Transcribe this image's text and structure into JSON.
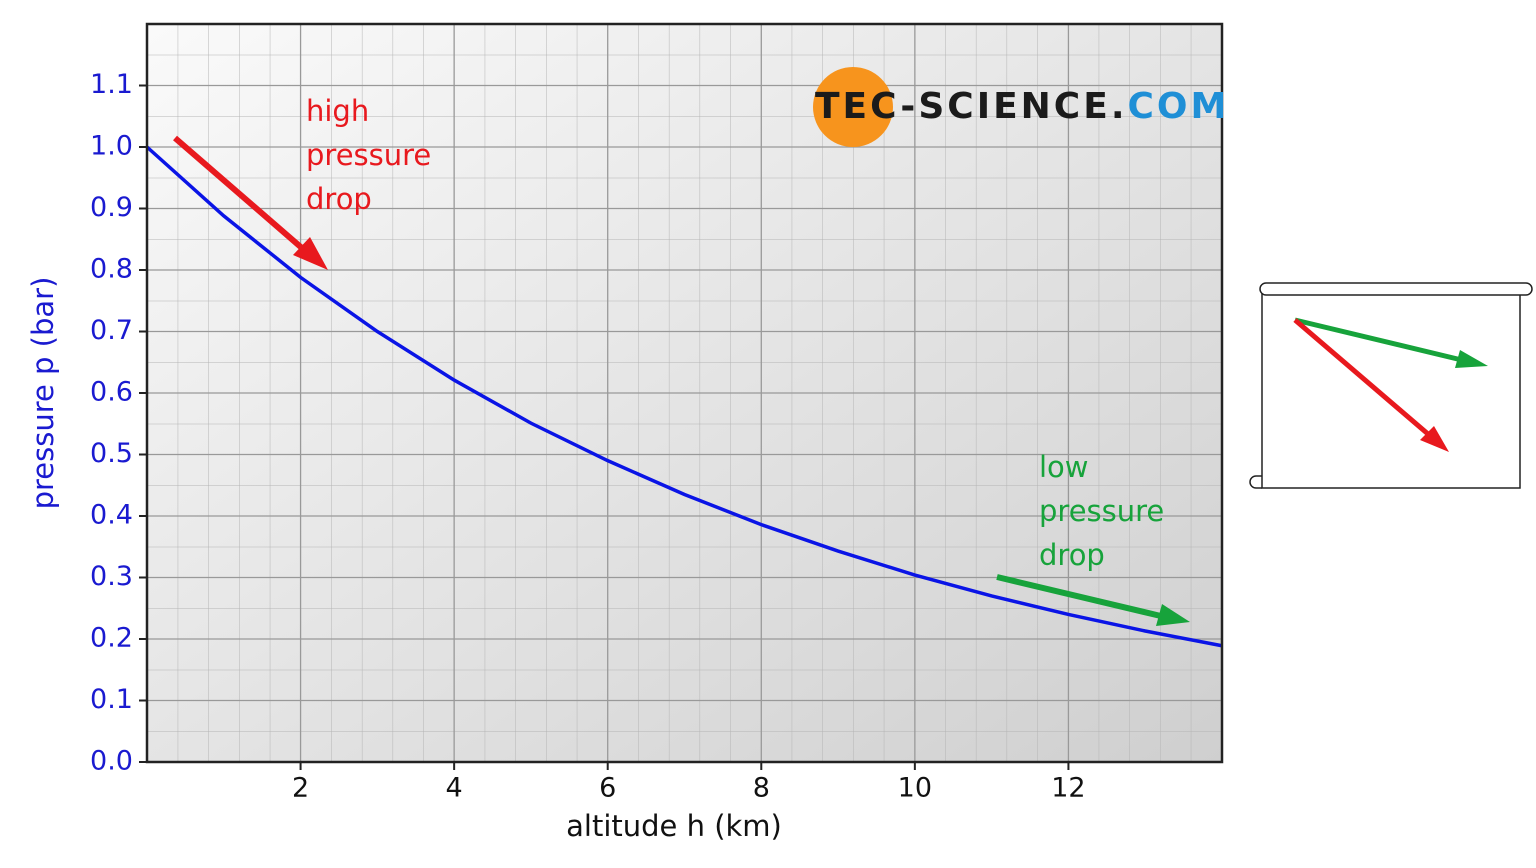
{
  "chart_data": {
    "type": "line",
    "xlabel": "altitude h (km)",
    "ylabel": "pressure p (bar)",
    "x": [
      0,
      1,
      2,
      3,
      4,
      5,
      6,
      7,
      8,
      9,
      10,
      11,
      12,
      13,
      14
    ],
    "series": [
      {
        "name": "pressure",
        "color": "#0a14e6",
        "values": [
          1.0,
          0.888,
          0.788,
          0.7,
          0.621,
          0.551,
          0.49,
          0.435,
          0.386,
          0.343,
          0.304,
          0.27,
          0.24,
          0.213,
          0.189
        ]
      }
    ],
    "xlim": [
      0,
      14
    ],
    "xticks": [
      2,
      4,
      6,
      8,
      10,
      12
    ],
    "ylim": [
      0,
      1.2
    ],
    "yticks": [
      {
        "value": 0,
        "label": "0.0"
      },
      0.1,
      0.2,
      0.3,
      0.4,
      0.5,
      0.6,
      0.7,
      0.8,
      0.9,
      {
        "value": 1,
        "label": "1.0"
      },
      1.1
    ],
    "grid": true,
    "annotations": [
      {
        "lines": [
          "high",
          "pressure",
          "drop"
        ],
        "color": "#e8191e"
      },
      {
        "lines": [
          "low",
          "pressure",
          "drop"
        ],
        "color": "#17a33b"
      }
    ],
    "logo": [
      "TEC-",
      "SCIENCE.",
      "COM"
    ]
  }
}
